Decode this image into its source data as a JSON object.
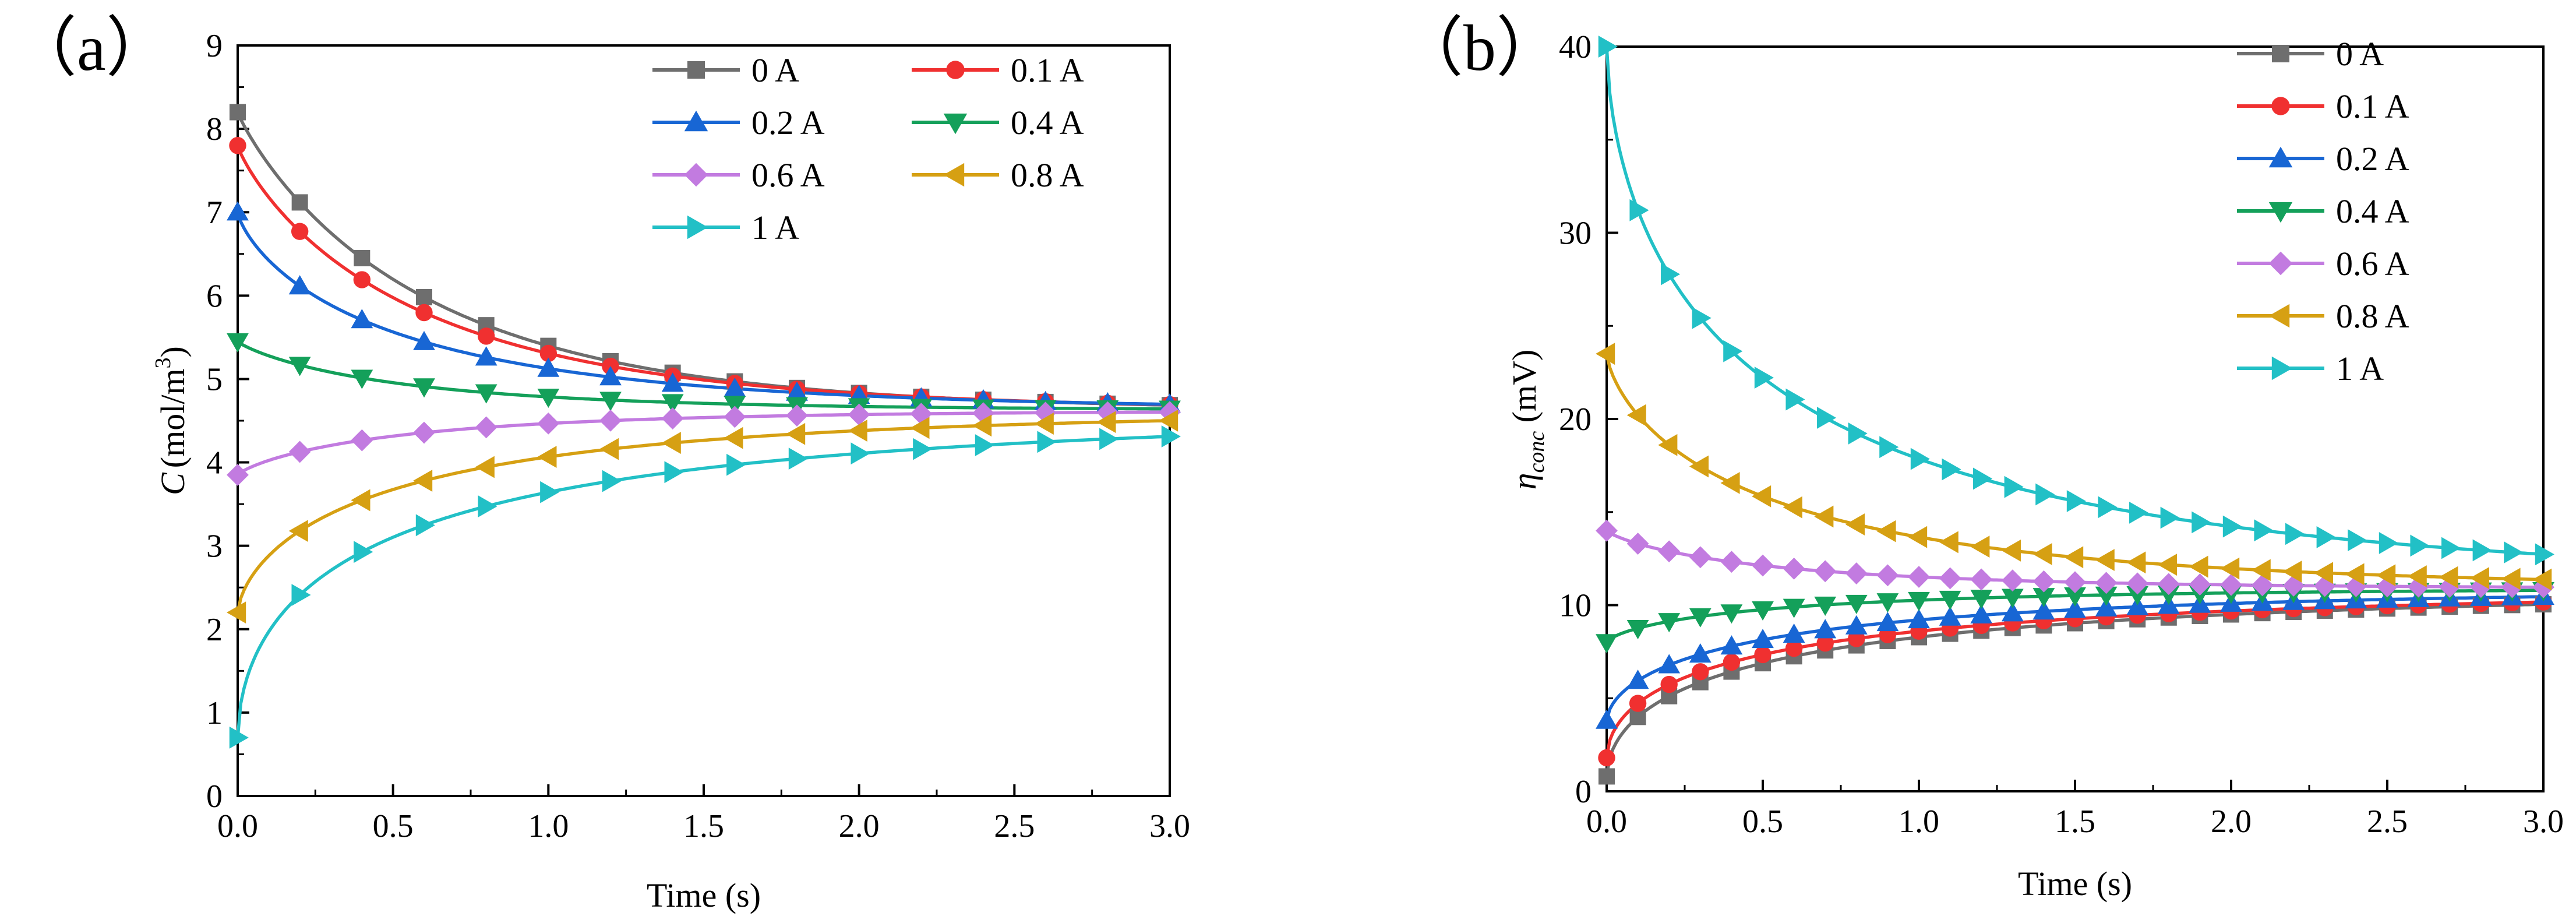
{
  "chart_data": [
    {
      "panel_label": "（a）",
      "type": "line",
      "title": "",
      "xlabel": "Time (s)",
      "ylabel_main": "C",
      "ylabel_unit": "(mol/m",
      "ylabel_sup": "3",
      "ylabel_close": ")",
      "xlim": [
        0,
        3
      ],
      "ylim": [
        0,
        9
      ],
      "xticks": [
        0.0,
        0.5,
        1.0,
        1.5,
        2.0,
        2.5,
        3.0
      ],
      "xtick_labels": [
        "0.0",
        "0.5",
        "1.0",
        "1.5",
        "2.0",
        "2.5",
        "3.0"
      ],
      "yticks": [
        0,
        1,
        2,
        3,
        4,
        5,
        6,
        7,
        8,
        9
      ],
      "ytick_labels": [
        "0",
        "1",
        "2",
        "3",
        "4",
        "5",
        "6",
        "7",
        "8",
        "9"
      ],
      "legend": {
        "placement": "top-right",
        "columns": 2
      },
      "marker_times": [
        0,
        0.2,
        0.4,
        0.6,
        0.8,
        1.0,
        1.2,
        1.4,
        1.6,
        1.8,
        2.0,
        2.2,
        2.4,
        2.6,
        2.8,
        3.0
      ],
      "series": [
        {
          "name": "0 A",
          "color": "#6e6e6e",
          "marker": "square",
          "initial": 8.2,
          "final": 4.63,
          "tau": 0.62,
          "shape": 0.9
        },
        {
          "name": "0.1 A",
          "color": "#f03030",
          "marker": "circle",
          "initial": 7.8,
          "final": 4.63,
          "tau": 0.6,
          "shape": 0.85
        },
        {
          "name": "0.2 A",
          "color": "#1866d4",
          "marker": "tri-up",
          "initial": 7.0,
          "final": 4.63,
          "tau": 0.55,
          "shape": 0.75
        },
        {
          "name": "0.4 A",
          "color": "#14a05a",
          "marker": "tri-down",
          "initial": 5.45,
          "final": 4.63,
          "tau": 0.55,
          "shape": 0.85
        },
        {
          "name": "0.6 A",
          "color": "#c27be0",
          "marker": "diamond",
          "initial": 3.85,
          "final": 4.62,
          "tau": 0.55,
          "shape": 0.8
        },
        {
          "name": "0.8 A",
          "color": "#d6a013",
          "marker": "tri-left",
          "initial": 2.2,
          "final": 4.62,
          "tau": 0.55,
          "shape": 0.65
        },
        {
          "name": "1 A",
          "color": "#22c0c6",
          "marker": "tri-right",
          "initial": 0.7,
          "final": 4.62,
          "tau": 0.55,
          "shape": 0.55
        }
      ]
    },
    {
      "panel_label": "（b）",
      "type": "line",
      "title": "",
      "xlabel": "Time (s)",
      "ylabel_main": "η",
      "ylabel_sub": "conc",
      "ylabel_unit": " (mV)",
      "xlim": [
        0,
        3
      ],
      "ylim": [
        0,
        40
      ],
      "xticks": [
        0.0,
        0.5,
        1.0,
        1.5,
        2.0,
        2.5,
        3.0
      ],
      "xtick_labels": [
        "0.0",
        "0.5",
        "1.0",
        "1.5",
        "2.0",
        "2.5",
        "3.0"
      ],
      "yticks": [
        0,
        10,
        20,
        30,
        40
      ],
      "ytick_labels": [
        "0",
        "10",
        "20",
        "30",
        "40"
      ],
      "legend": {
        "placement": "top-right",
        "columns": 1
      },
      "marker_times": [
        0,
        0.1,
        0.2,
        0.3,
        0.4,
        0.5,
        0.6,
        0.7,
        0.8,
        0.9,
        1.0,
        1.1,
        1.2,
        1.3,
        1.4,
        1.5,
        1.6,
        1.7,
        1.8,
        1.9,
        2.0,
        2.1,
        2.2,
        2.3,
        2.4,
        2.5,
        2.6,
        2.7,
        2.8,
        2.9,
        3.0
      ],
      "series": [
        {
          "name": "0 A",
          "color": "#6e6e6e",
          "marker": "square",
          "initial": 0.8,
          "final": 10.9,
          "tau": 0.58,
          "shape": 0.55
        },
        {
          "name": "0.1 A",
          "color": "#f03030",
          "marker": "circle",
          "initial": 1.8,
          "final": 10.9,
          "tau": 0.56,
          "shape": 0.55
        },
        {
          "name": "0.2 A",
          "color": "#1866d4",
          "marker": "tri-up",
          "initial": 3.8,
          "final": 10.9,
          "tau": 0.55,
          "shape": 0.6
        },
        {
          "name": "0.4 A",
          "color": "#14a05a",
          "marker": "tri-down",
          "initial": 8.0,
          "final": 10.9,
          "tau": 0.55,
          "shape": 0.7
        },
        {
          "name": "0.6 A",
          "color": "#c27be0",
          "marker": "diamond",
          "initial": 14.0,
          "final": 10.9,
          "tau": 0.55,
          "shape": 0.8
        },
        {
          "name": "0.8 A",
          "color": "#d6a013",
          "marker": "tri-left",
          "initial": 23.5,
          "final": 10.9,
          "tau": 0.55,
          "shape": 0.7
        },
        {
          "name": "1 A",
          "color": "#22c0c6",
          "marker": "tri-right",
          "initial": 40.0,
          "final": 10.9,
          "tau": 0.55,
          "shape": 0.6
        }
      ]
    }
  ]
}
